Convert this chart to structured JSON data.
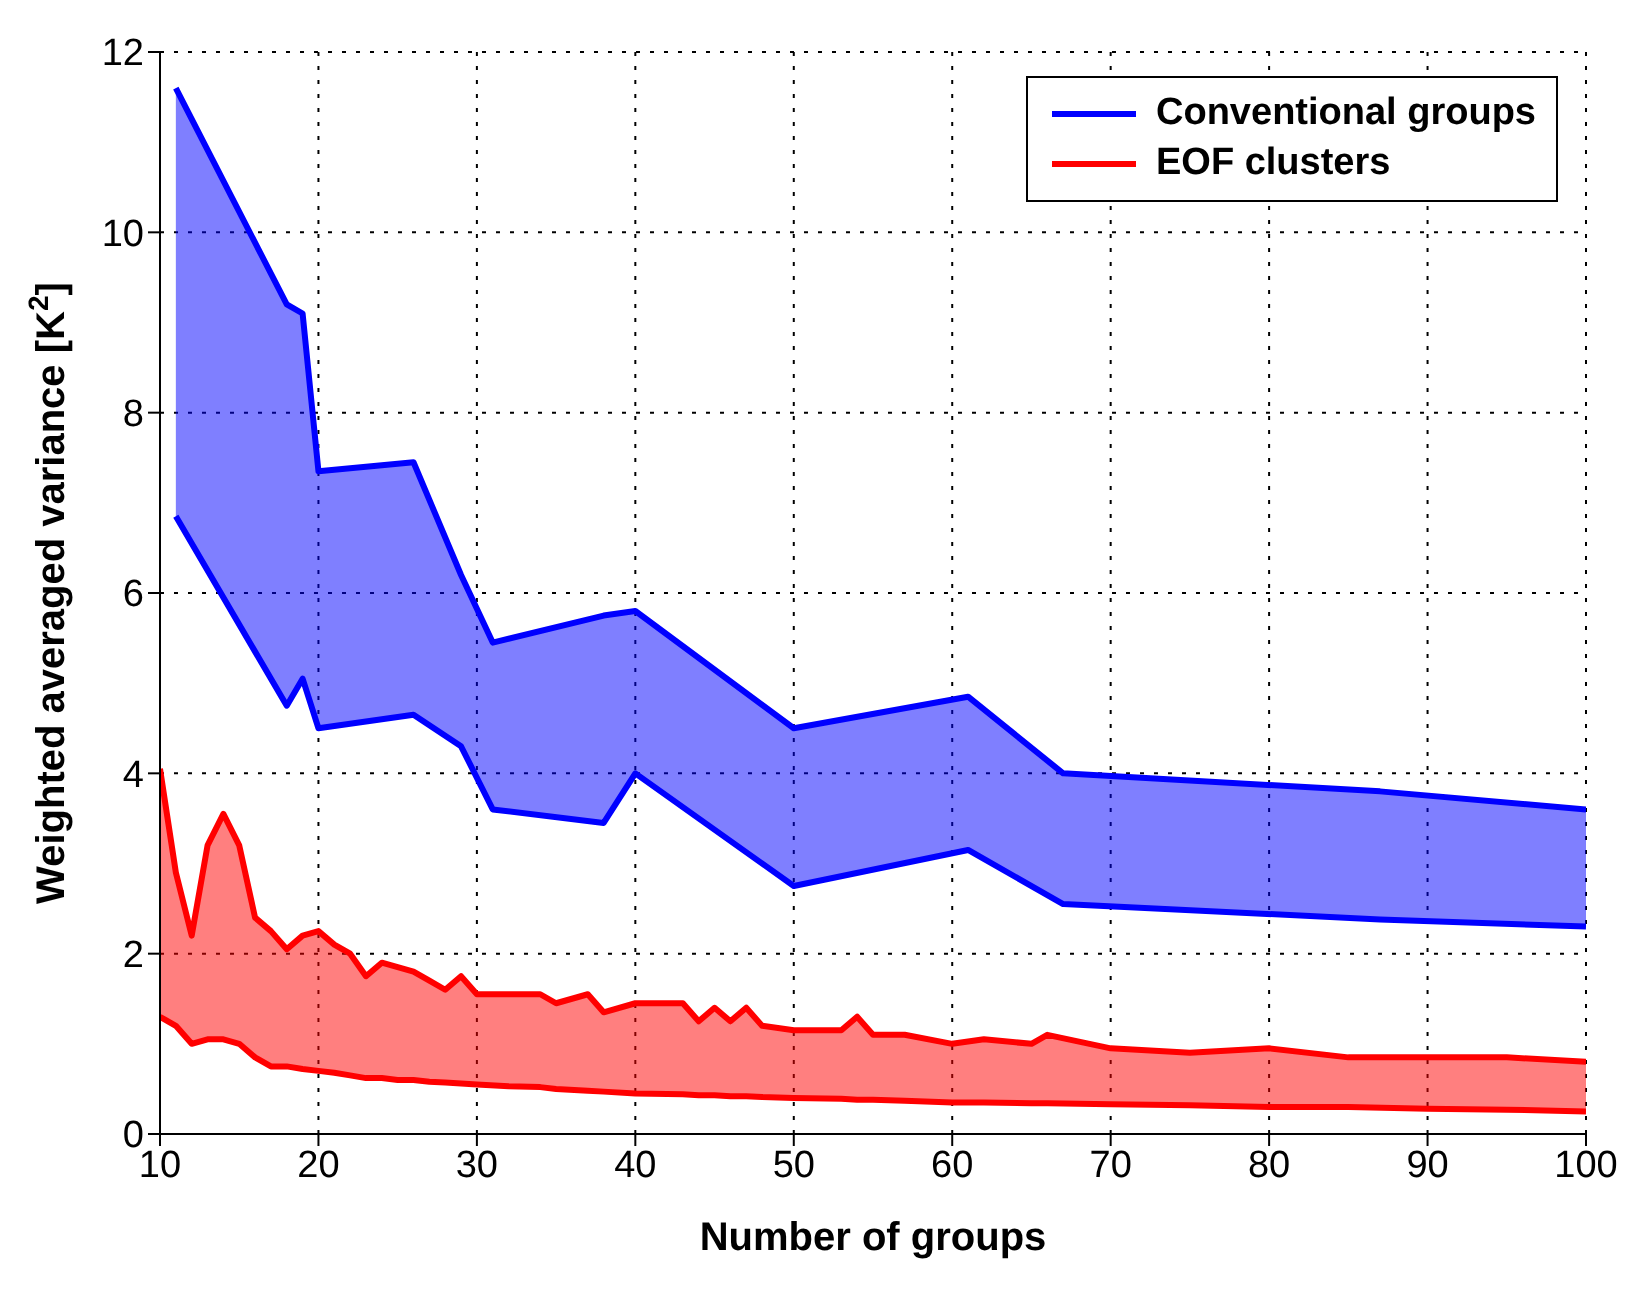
{
  "chart_data": {
    "type": "area",
    "xlabel": "Number of groups",
    "ylabel": "Weighted averaged variance [K$^{2}$]",
    "xlim": [
      10,
      100
    ],
    "xticks": [
      10,
      20,
      30,
      40,
      50,
      60,
      70,
      80,
      90,
      100
    ],
    "ylim": [
      0,
      12
    ],
    "yticks": [
      0,
      2,
      4,
      6,
      8,
      10,
      12
    ],
    "grid": true,
    "legend": "top right",
    "series": [
      {
        "name": "Conventional groups",
        "color": "#0000ff",
        "x": [
          11,
          18,
          19,
          20,
          26,
          29,
          31,
          38,
          40,
          50,
          61,
          67,
          87,
          100
        ],
        "values": [
          11.6,
          9.2,
          9.1,
          7.35,
          7.45,
          6.2,
          5.45,
          5.75,
          5.8,
          4.5,
          4.85,
          4.0,
          3.8,
          3.6
        ]
      },
      {
        "type": "line",
        "color": "#0000ff",
        "x": [
          11,
          18,
          19,
          20,
          26,
          29,
          31,
          38,
          40,
          50,
          61,
          67,
          87,
          100
        ],
        "values": [
          6.85,
          4.75,
          5.05,
          4.5,
          4.65,
          4.3,
          3.6,
          3.45,
          4.0,
          2.75,
          3.15,
          2.55,
          2.38,
          2.3
        ]
      },
      {
        "name": "EOF clusters",
        "color": "#ff0000",
        "x": [
          10,
          11,
          12,
          13,
          14,
          15,
          16,
          17,
          18,
          19,
          20,
          21,
          22,
          23,
          24,
          25,
          26,
          27,
          28,
          29,
          30,
          32,
          34,
          35,
          37,
          38,
          40,
          43,
          44,
          45,
          46,
          47,
          48,
          50,
          53,
          54,
          55,
          57,
          60,
          62,
          65,
          66,
          70,
          75,
          80,
          85,
          90,
          95,
          100
        ],
        "values": [
          4.05,
          2.9,
          2.2,
          3.2,
          3.55,
          3.2,
          2.4,
          2.25,
          2.05,
          2.2,
          2.25,
          2.1,
          2.0,
          1.75,
          1.9,
          1.85,
          1.8,
          1.7,
          1.6,
          1.75,
          1.55,
          1.55,
          1.55,
          1.45,
          1.55,
          1.35,
          1.45,
          1.45,
          1.25,
          1.4,
          1.25,
          1.4,
          1.2,
          1.15,
          1.15,
          1.3,
          1.1,
          1.1,
          1.0,
          1.05,
          1.0,
          1.1,
          0.95,
          0.9,
          0.95,
          0.85,
          0.85,
          0.85,
          0.8
        ]
      },
      {
        "type": "line",
        "color": "#ff0000",
        "x": [
          10,
          11,
          12,
          13,
          14,
          15,
          16,
          17,
          18,
          19,
          20,
          21,
          22,
          23,
          24,
          25,
          26,
          27,
          28,
          29,
          30,
          32,
          34,
          35,
          37,
          38,
          40,
          43,
          44,
          45,
          46,
          47,
          48,
          50,
          53,
          54,
          55,
          57,
          60,
          62,
          65,
          66,
          70,
          75,
          80,
          85,
          90,
          95,
          100
        ],
        "values": [
          1.3,
          1.2,
          1.0,
          1.05,
          1.05,
          1.0,
          0.85,
          0.75,
          0.75,
          0.72,
          0.7,
          0.68,
          0.65,
          0.62,
          0.62,
          0.6,
          0.6,
          0.58,
          0.57,
          0.56,
          0.55,
          0.53,
          0.52,
          0.5,
          0.48,
          0.47,
          0.45,
          0.44,
          0.43,
          0.43,
          0.42,
          0.42,
          0.41,
          0.4,
          0.39,
          0.38,
          0.38,
          0.37,
          0.35,
          0.35,
          0.34,
          0.34,
          0.33,
          0.32,
          0.3,
          0.3,
          0.28,
          0.27,
          0.25
        ]
      }
    ]
  }
}
